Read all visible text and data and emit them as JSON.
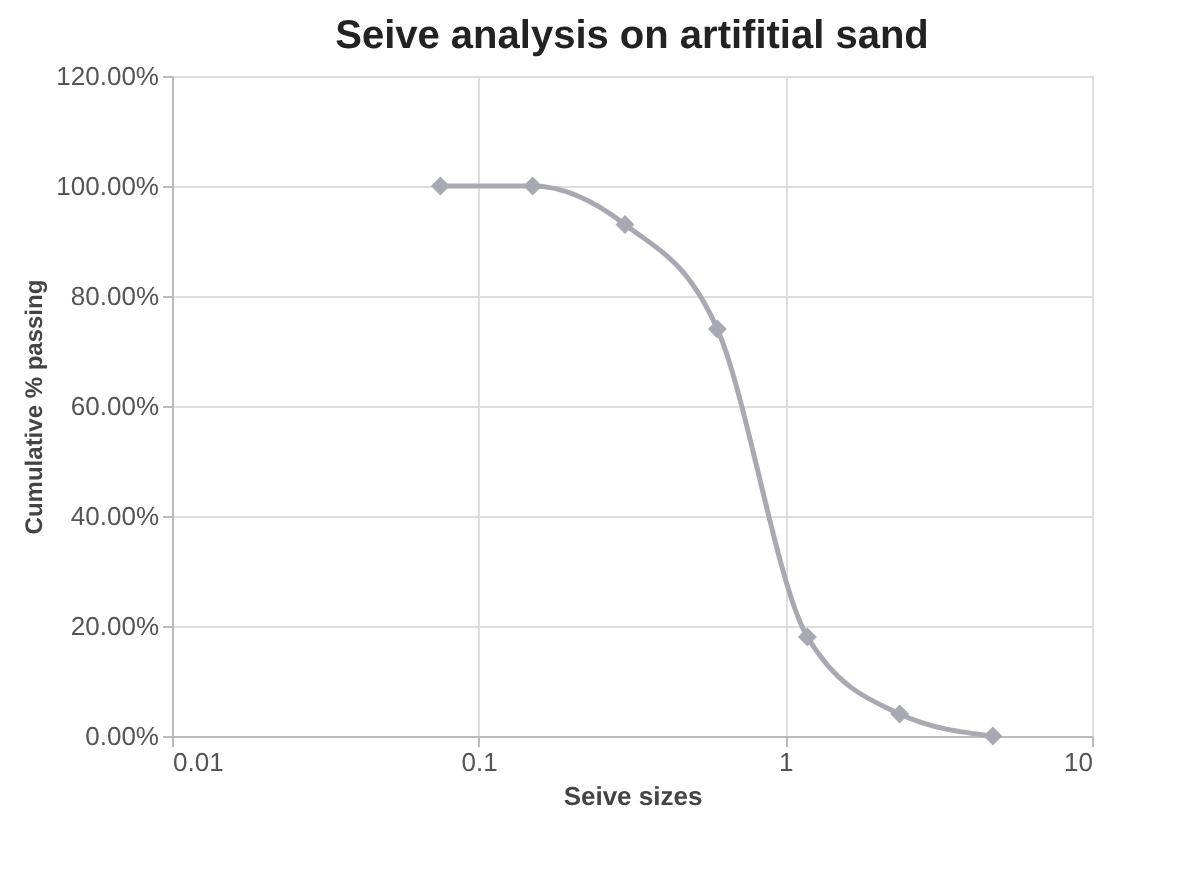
{
  "chart_data": {
    "type": "line",
    "title": "Seive analysis on artifitial sand",
    "xlabel": "Seive sizes",
    "ylabel": "Cumulative % passing",
    "x": [
      0.075,
      0.15,
      0.3,
      0.6,
      1.18,
      2.36,
      4.75
    ],
    "series": [
      {
        "color": "#a9a9b4",
        "values": [
          100,
          100,
          93,
          74,
          18,
          4,
          0
        ]
      }
    ],
    "log": "x",
    "xlim": [
      0.01,
      10
    ],
    "xticks": [
      0.01,
      0.1,
      1,
      10
    ],
    "ylim": [
      0,
      120
    ],
    "yticks": [
      {
        "value": 0,
        "label": "0.00%"
      },
      {
        "value": 20,
        "label": "20.00%"
      },
      {
        "value": 40,
        "label": "40.00%"
      },
      {
        "value": 60,
        "label": "60.00%"
      },
      {
        "value": 80,
        "label": "80.00%"
      },
      {
        "value": 100,
        "label": "100.00%"
      },
      {
        "value": 120,
        "label": "120.00%"
      }
    ],
    "grid": true,
    "marker": "diamond"
  }
}
